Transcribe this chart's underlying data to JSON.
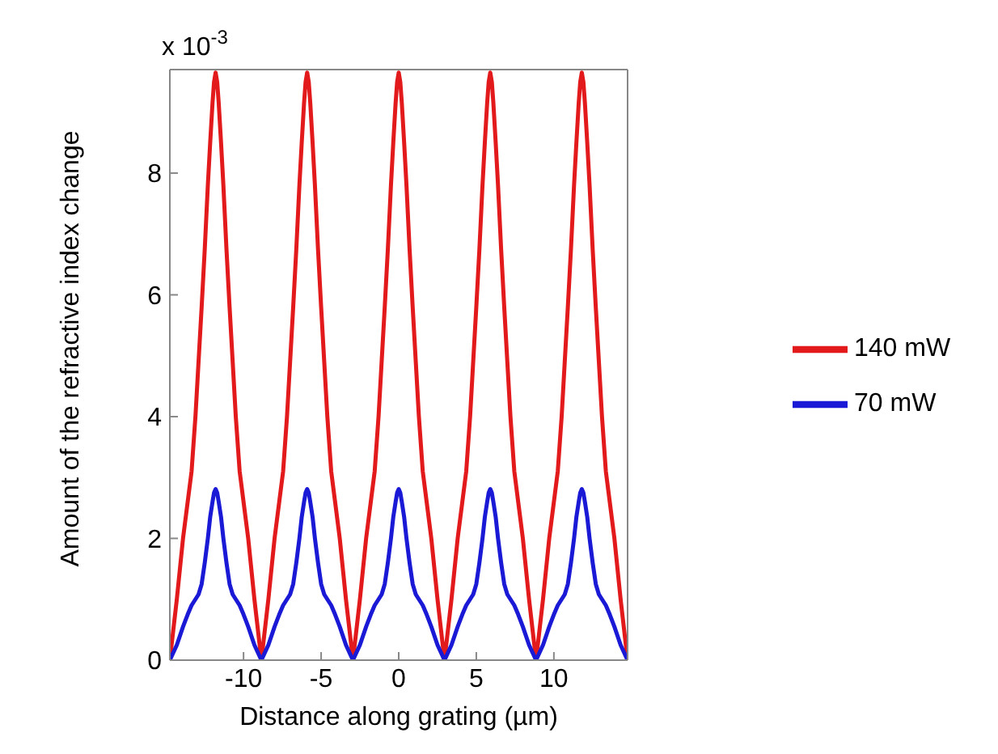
{
  "chart_data": {
    "type": "line",
    "xlabel": "Distance along grating (µm)",
    "ylabel": "Amount of the refractive index change",
    "annotations": [
      "x 10$^{-3}$"
    ],
    "x": [
      -14.75,
      -14.3,
      -13.9,
      -13.6,
      -13.35,
      -13.1,
      -12.9,
      -12.7,
      -12.5,
      -12.3,
      -12.15,
      -12.0,
      -11.9,
      -11.8,
      -11.7,
      -11.6,
      -11.45,
      -11.3,
      -11.1,
      -10.9,
      -10.7,
      -10.5,
      -10.25,
      -10.0,
      -9.7,
      -9.3,
      -8.85,
      -8.4,
      -8.0,
      -7.7,
      -7.45,
      -7.2,
      -7.0,
      -6.8,
      -6.6,
      -6.4,
      -6.25,
      -6.1,
      -6.0,
      -5.9,
      -5.8,
      -5.7,
      -5.55,
      -5.4,
      -5.2,
      -5.0,
      -4.8,
      -4.6,
      -4.35,
      -4.1,
      -3.8,
      -3.4,
      -2.95,
      -2.5,
      -2.1,
      -1.8,
      -1.55,
      -1.3,
      -1.1,
      -0.9,
      -0.7,
      -0.5,
      -0.35,
      -0.2,
      -0.1,
      0,
      0.1,
      0.2,
      0.35,
      0.5,
      0.7,
      0.9,
      1.1,
      1.3,
      1.55,
      1.8,
      2.1,
      2.5,
      2.95,
      3.4,
      3.8,
      4.1,
      4.35,
      4.6,
      4.8,
      5.0,
      5.2,
      5.4,
      5.55,
      5.7,
      5.8,
      5.9,
      6.0,
      6.1,
      6.25,
      6.4,
      6.6,
      6.8,
      7.0,
      7.2,
      7.45,
      7.7,
      8.0,
      8.4,
      8.85,
      9.3,
      9.7,
      10.0,
      10.25,
      10.5,
      10.7,
      10.9,
      11.1,
      11.3,
      11.45,
      11.6,
      11.7,
      11.8,
      11.9,
      12.0,
      12.15,
      12.3,
      12.5,
      12.7,
      12.9,
      13.1,
      13.35,
      13.6,
      13.9,
      14.3,
      14.75
    ],
    "series": [
      {
        "name": "140 mW",
        "color": "#e31a1c",
        "values": [
          0,
          1.0,
          2.0,
          2.6,
          3.1,
          4.0,
          4.9,
          5.8,
          6.75,
          7.8,
          8.5,
          9.15,
          9.5,
          9.65,
          9.5,
          9.15,
          8.5,
          7.8,
          6.75,
          5.8,
          4.9,
          4.0,
          3.1,
          2.6,
          2.0,
          1.0,
          0,
          1.0,
          2.0,
          2.6,
          3.1,
          4.0,
          4.9,
          5.8,
          6.75,
          7.8,
          8.5,
          9.15,
          9.5,
          9.65,
          9.5,
          9.15,
          8.5,
          7.8,
          6.75,
          5.8,
          4.9,
          4.0,
          3.1,
          2.6,
          2.0,
          1.0,
          0,
          1.0,
          2.0,
          2.6,
          3.1,
          4.0,
          4.9,
          5.8,
          6.75,
          7.8,
          8.5,
          9.15,
          9.5,
          9.65,
          9.5,
          9.15,
          8.5,
          7.8,
          6.75,
          5.8,
          4.9,
          4.0,
          3.1,
          2.6,
          2.0,
          1.0,
          0,
          1.0,
          2.0,
          2.6,
          3.1,
          4.0,
          4.9,
          5.8,
          6.75,
          7.8,
          8.5,
          9.15,
          9.5,
          9.65,
          9.5,
          9.15,
          8.5,
          7.8,
          6.75,
          5.8,
          4.9,
          4.0,
          3.1,
          2.6,
          2.0,
          1.0,
          0,
          1.0,
          2.0,
          2.6,
          3.1,
          4.0,
          4.9,
          5.8,
          6.75,
          7.8,
          8.5,
          9.15,
          9.5,
          9.65,
          9.5,
          9.15,
          8.5,
          7.8,
          6.75,
          5.8,
          4.9,
          4.0,
          3.1,
          2.6,
          2.0,
          1.0,
          0
        ]
      },
      {
        "name": "70 mW",
        "color": "#1a1ad6",
        "values": [
          0,
          0.25,
          0.55,
          0.75,
          0.9,
          1.0,
          1.08,
          1.25,
          1.6,
          2.0,
          2.35,
          2.6,
          2.75,
          2.81,
          2.75,
          2.6,
          2.35,
          2.0,
          1.6,
          1.25,
          1.08,
          1.0,
          0.9,
          0.75,
          0.55,
          0.25,
          0,
          0.25,
          0.55,
          0.75,
          0.9,
          1.0,
          1.08,
          1.25,
          1.6,
          2.0,
          2.35,
          2.6,
          2.75,
          2.81,
          2.75,
          2.6,
          2.35,
          2.0,
          1.6,
          1.25,
          1.08,
          1.0,
          0.9,
          0.75,
          0.55,
          0.25,
          0,
          0.25,
          0.55,
          0.75,
          0.9,
          1.0,
          1.08,
          1.25,
          1.6,
          2.0,
          2.35,
          2.6,
          2.75,
          2.81,
          2.75,
          2.6,
          2.35,
          2.0,
          1.6,
          1.25,
          1.08,
          1.0,
          0.9,
          0.75,
          0.55,
          0.25,
          0,
          0.25,
          0.55,
          0.75,
          0.9,
          1.0,
          1.08,
          1.25,
          1.6,
          2.0,
          2.35,
          2.6,
          2.75,
          2.81,
          2.75,
          2.6,
          2.35,
          2.0,
          1.6,
          1.25,
          1.08,
          1.0,
          0.9,
          0.75,
          0.55,
          0.25,
          0,
          0.25,
          0.55,
          0.75,
          0.9,
          1.0,
          1.08,
          1.25,
          1.6,
          2.0,
          2.35,
          2.6,
          2.75,
          2.81,
          2.75,
          2.6,
          2.35,
          2.0,
          1.6,
          1.25,
          1.08,
          1.0,
          0.9,
          0.75,
          0.55,
          0.25,
          0
        ]
      }
    ],
    "xlim": [
      -14.75,
      14.75
    ],
    "xticks": [
      -10,
      -5,
      0,
      5,
      10
    ],
    "ylim": [
      0,
      9.7
    ],
    "yticks": [
      0,
      2,
      4,
      6,
      8
    ],
    "legend": "right",
    "marker": "none",
    "line_style": "solid"
  }
}
